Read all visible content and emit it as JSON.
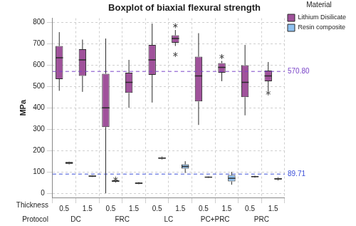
{
  "chart_data": {
    "type": "boxplot",
    "title": "Boxplot of biaxial flexural strength",
    "y_label": "MPa",
    "categories": [
      "0.5",
      "1.5",
      "0.5",
      "1.5",
      "0.5",
      "1.5",
      "0.5",
      "1.5",
      "0.5",
      "1.5"
    ],
    "category_groups": [
      "DC",
      "FRC",
      "LC",
      "PC+PRC",
      "PRC"
    ],
    "x_row_labels": [
      "Thickness",
      "Protocol"
    ],
    "legend_title": "Material",
    "legend": "top right",
    "grid": true,
    "ylim": [
      -20,
      820
    ],
    "yticks": [
      0,
      100,
      200,
      300,
      400,
      500,
      600,
      700,
      800
    ],
    "series": [
      {
        "name": "Lithium Disilicate",
        "color": "#a0529b",
        "values": [
          {
            "min": 480,
            "q1": 535,
            "median": 635,
            "q3": 690,
            "max": 755,
            "outliers": []
          },
          {
            "min": 475,
            "q1": 550,
            "median": 625,
            "q3": 675,
            "max": 720,
            "outliers": []
          },
          {
            "min": 0,
            "q1": 310,
            "median": 400,
            "q3": 560,
            "max": 725,
            "outliers": []
          },
          {
            "min": 400,
            "q1": 470,
            "median": 520,
            "q3": 565,
            "max": 625,
            "outliers": []
          },
          {
            "min": 425,
            "q1": 555,
            "median": 625,
            "q3": 695,
            "max": 795,
            "outliers": []
          },
          {
            "min": 690,
            "q1": 705,
            "median": 725,
            "q3": 740,
            "max": 765,
            "outliers": [
              785,
              650
            ]
          },
          {
            "min": 320,
            "q1": 430,
            "median": 550,
            "q3": 640,
            "max": 750,
            "outliers": []
          },
          {
            "min": 525,
            "q1": 565,
            "median": 590,
            "q3": 610,
            "max": 620,
            "outliers": [
              640
            ]
          },
          {
            "min": 365,
            "q1": 450,
            "median": 520,
            "q3": 600,
            "max": 695,
            "outliers": []
          },
          {
            "min": 480,
            "q1": 525,
            "median": 550,
            "q3": 575,
            "max": 615,
            "outliers": [
              470
            ]
          }
        ]
      },
      {
        "name": "Resin composite",
        "color": "#8fc1f0",
        "values": [
          {
            "min": 135,
            "q1": 138,
            "median": 142,
            "q3": 146,
            "max": 148,
            "outliers": []
          },
          {
            "min": 76,
            "q1": 78,
            "median": 80,
            "q3": 82,
            "max": 84,
            "outliers": []
          },
          {
            "min": 50,
            "q1": 54,
            "median": 57,
            "q3": 60,
            "max": 62,
            "outliers": [
              66
            ]
          },
          {
            "min": 42,
            "q1": 45,
            "median": 47,
            "q3": 50,
            "max": 52,
            "outliers": []
          },
          {
            "min": 158,
            "q1": 162,
            "median": 165,
            "q3": 168,
            "max": 172,
            "outliers": []
          },
          {
            "min": 95,
            "q1": 115,
            "median": 125,
            "q3": 135,
            "max": 150,
            "outliers": []
          },
          {
            "min": 72,
            "q1": 74,
            "median": 75,
            "q3": 76,
            "max": 78,
            "outliers": []
          },
          {
            "min": 40,
            "q1": 55,
            "median": 70,
            "q3": 85,
            "max": 100,
            "outliers": []
          },
          {
            "min": 73,
            "q1": 76,
            "median": 78,
            "q3": 80,
            "max": 82,
            "outliers": []
          },
          {
            "min": 60,
            "q1": 64,
            "median": 68,
            "q3": 71,
            "max": 75,
            "outliers": []
          }
        ]
      }
    ],
    "reference_lines": [
      {
        "value": 570.8,
        "label": "570.80",
        "color": "#7a44c8"
      },
      {
        "value": 89.71,
        "label": "89.71",
        "color": "#3b4fd8"
      }
    ]
  }
}
